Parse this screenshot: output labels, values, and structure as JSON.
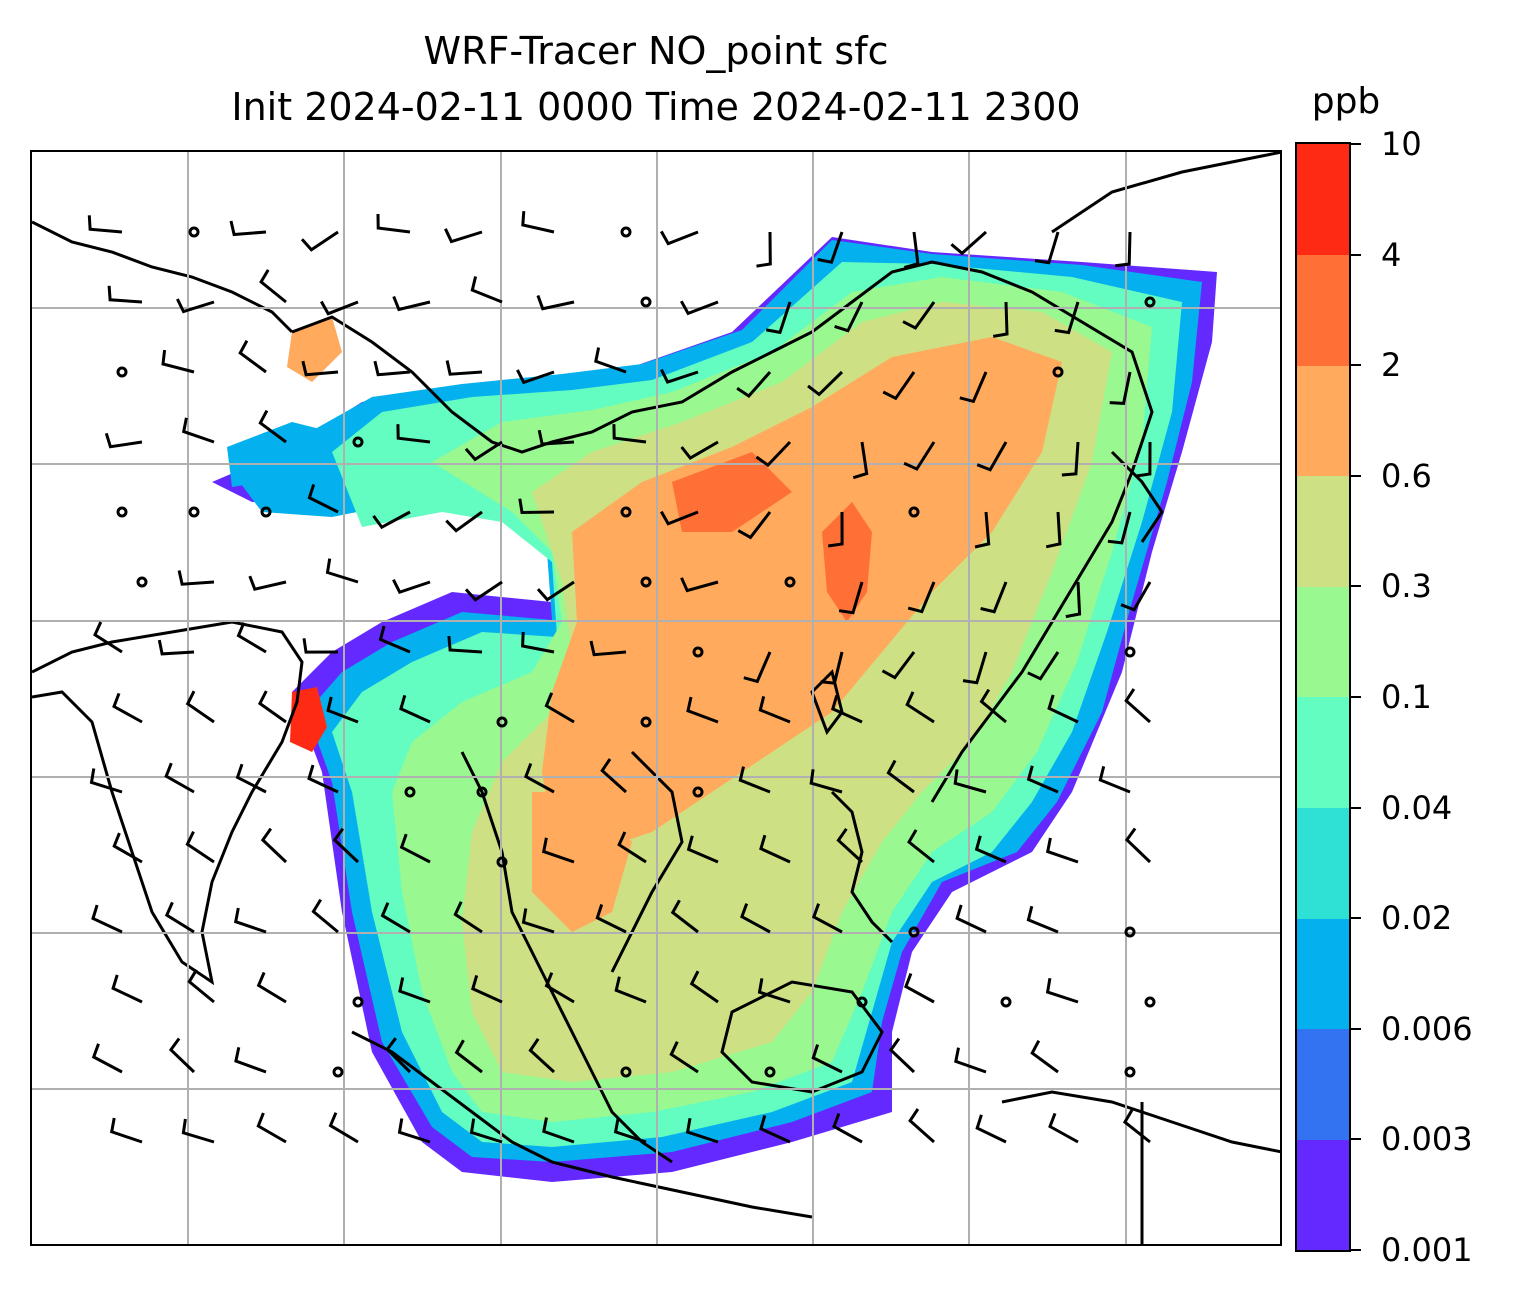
{
  "title": {
    "line1": "WRF-Tracer NO_point sfc",
    "line2": "Init 2024-02-11 0000 Time 2024-02-11 2300"
  },
  "colorbar": {
    "unit": "ppb",
    "tick_labels": [
      "0.001",
      "0.003",
      "0.006",
      "0.02",
      "0.04",
      "0.1",
      "0.3",
      "0.6",
      "2",
      "4",
      "10"
    ],
    "colors": [
      "#6429ff",
      "#3373f2",
      "#04b0ed",
      "#2fe0d5",
      "#63fcc1",
      "#99f890",
      "#cde084",
      "#ffaa5c",
      "#ff7037",
      "#ff2a14"
    ]
  },
  "map": {
    "legend_colors_ref": "colorbar.colors",
    "coastline_color": "#000000",
    "grid_color": "#b0b0b0",
    "wind_barb_color": "#000000"
  }
}
